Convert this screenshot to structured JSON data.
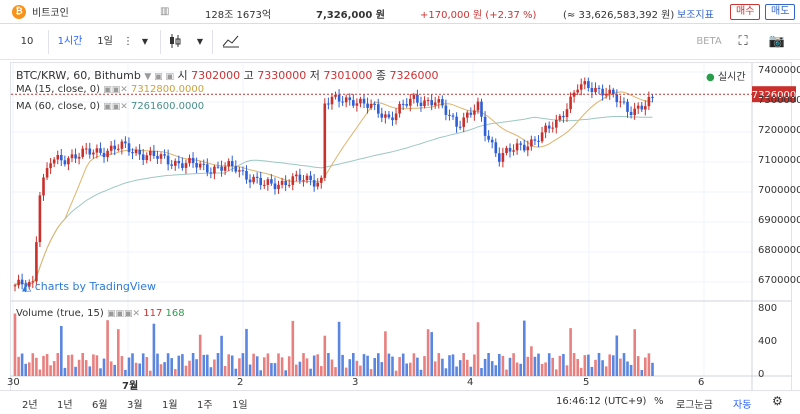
{
  "topbar": {
    "coin_glyph": "₿",
    "coin_name": "비트코인",
    "volume_label": "128조 1673억",
    "price": "7,326,000 원",
    "change": "+170,000 원 (+2.37 %)",
    "trade_value": "(≈ 33,626,583,392 원)",
    "indicator_btn": "보조지표",
    "buy_btn": "매수",
    "sell_btn": "매도"
  },
  "toolbar": {
    "count": "10",
    "interval_active": "1시간",
    "interval_day": "1일",
    "beta": "BETA"
  },
  "legend": {
    "symbol": "BTC/KRW, 60, Bithumb",
    "open_label": "시",
    "open": "7302000",
    "high_label": "고",
    "high": "7330000",
    "low_label": "저",
    "low": "7301000",
    "close_label": "종",
    "close": "7326000",
    "ma15_label": "MA (15, close, 0)",
    "ma15_value": "7312800.0000",
    "ma60_label": "MA (60, close, 0)",
    "ma60_value": "7261600.0000",
    "live": "실시간",
    "volume_label": "Volume (true, 15)",
    "vol_a": "117",
    "vol_b": "168",
    "watermark": "charts by TradingView"
  },
  "price_axis": [
    "7400000",
    "7300000",
    "7200000",
    "7100000",
    "7000000",
    "6900000",
    "6800000",
    "6700000"
  ],
  "price_tag": "7326000",
  "volume_axis": [
    "800",
    "400",
    "0"
  ],
  "time_axis": [
    "30",
    "7월",
    "2",
    "3",
    "4",
    "5",
    "6"
  ],
  "bottom": {
    "ranges": [
      "2년",
      "1년",
      "6월",
      "3월",
      "1월",
      "1주",
      "1일"
    ],
    "clock": "16:46:12 (UTC+9)",
    "pct": "%",
    "log": "로그눈금",
    "auto": "자동"
  },
  "colors": {
    "up": "#c9302c",
    "down": "#2e5fd6",
    "ma15": "#e0b36a",
    "ma60": "#9dc7c0",
    "up_vol": "#e88080",
    "down_vol": "#5b86e0"
  }
}
